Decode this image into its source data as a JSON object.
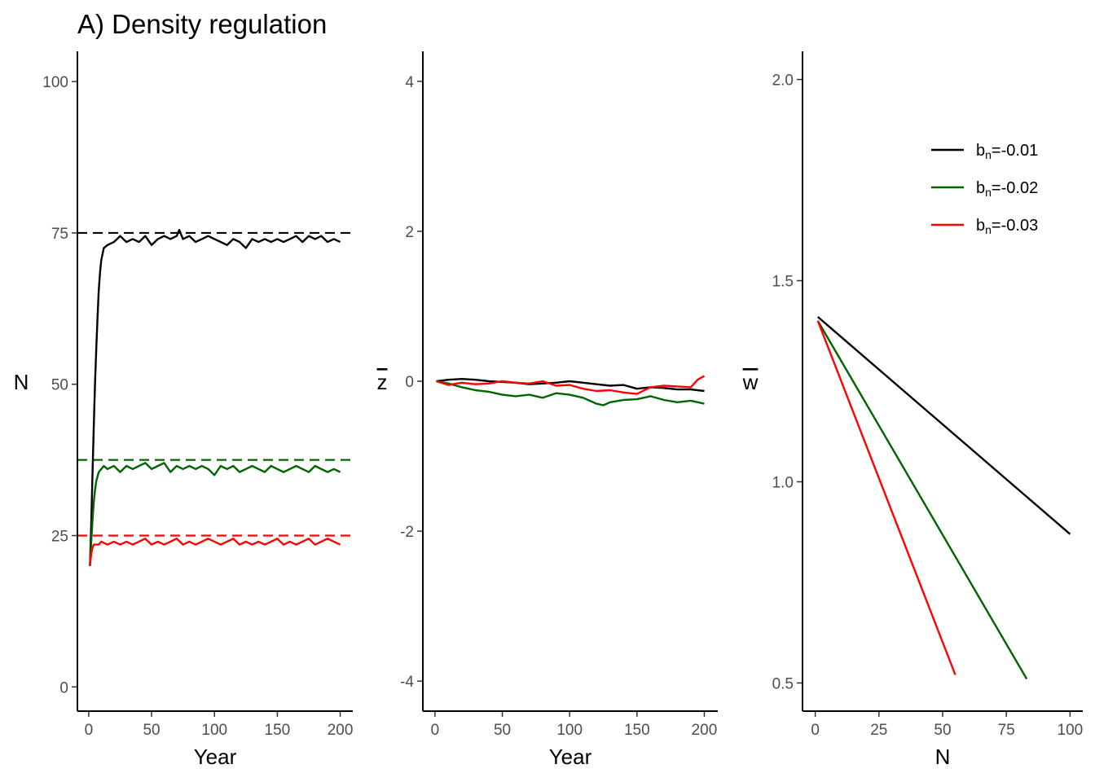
{
  "figure": {
    "title": "A) Density regulation"
  },
  "legend": [
    {
      "base": "b",
      "sub": "n",
      "rest": "=-0.01",
      "color": "#000000"
    },
    {
      "base": "b",
      "sub": "n",
      "rest": "=-0.02",
      "color": "#006400"
    },
    {
      "base": "b",
      "sub": "n",
      "rest": "=-0.03",
      "color": "#ff0000"
    }
  ],
  "chart_data": [
    {
      "type": "line",
      "xlabel": "Year",
      "ylabel": "N",
      "xlim": [
        -9,
        210
      ],
      "ylim": [
        -4,
        105
      ],
      "xticks": [
        0,
        50,
        100,
        150,
        200
      ],
      "yticks": [
        0,
        25,
        50,
        75,
        100
      ],
      "reference_lines": [
        {
          "y": 75,
          "color": "#000000",
          "style": "dashed"
        },
        {
          "y": 37.5,
          "color": "#006400",
          "style": "dashed"
        },
        {
          "y": 25,
          "color": "#ff0000",
          "style": "dashed"
        }
      ],
      "series": [
        {
          "color": "#000000",
          "x": [
            1,
            2,
            3,
            4,
            5,
            6,
            7,
            8,
            9,
            10,
            12,
            15,
            20,
            25,
            30,
            35,
            40,
            45,
            50,
            55,
            60,
            65,
            70,
            72,
            75,
            80,
            85,
            90,
            95,
            100,
            105,
            110,
            115,
            120,
            125,
            130,
            135,
            140,
            145,
            150,
            155,
            160,
            165,
            170,
            175,
            180,
            185,
            190,
            195,
            200
          ],
          "y": [
            20,
            27,
            35,
            43,
            50,
            56,
            61,
            65.5,
            68.5,
            70.5,
            72.5,
            73,
            73.5,
            74.5,
            73.5,
            74,
            73.5,
            74.5,
            73,
            74,
            74.5,
            74,
            74.5,
            75.5,
            74,
            74.5,
            73.5,
            74,
            74.5,
            74,
            73.5,
            73,
            74,
            73.5,
            72.5,
            74,
            73.5,
            74,
            73.5,
            74,
            73.5,
            74,
            74.5,
            73.5,
            74.5,
            74,
            74.5,
            73.5,
            74,
            73.5
          ]
        },
        {
          "color": "#006400",
          "x": [
            1,
            2,
            3,
            4,
            5,
            6,
            8,
            10,
            12,
            15,
            20,
            25,
            30,
            35,
            40,
            45,
            50,
            55,
            60,
            65,
            70,
            75,
            80,
            85,
            90,
            95,
            100,
            105,
            110,
            115,
            120,
            125,
            130,
            135,
            140,
            145,
            150,
            155,
            160,
            165,
            170,
            175,
            180,
            185,
            190,
            195,
            200
          ],
          "y": [
            20,
            24,
            27.5,
            30.5,
            32.5,
            34,
            35.5,
            36,
            36.5,
            36,
            36.5,
            35.5,
            36.5,
            36,
            36.5,
            37,
            36,
            36.5,
            37,
            35.5,
            36.5,
            36,
            36.5,
            36,
            36.5,
            36,
            35,
            36.5,
            36,
            36.5,
            35.5,
            36,
            36.5,
            36,
            35.5,
            36.5,
            36,
            35.5,
            36,
            36.5,
            36,
            35.5,
            36.5,
            36,
            35.5,
            36,
            35.5
          ]
        },
        {
          "color": "#ff0000",
          "x": [
            1,
            2,
            3,
            4,
            6,
            8,
            10,
            15,
            20,
            25,
            30,
            35,
            40,
            45,
            50,
            55,
            60,
            65,
            70,
            75,
            80,
            85,
            90,
            95,
            100,
            105,
            110,
            115,
            120,
            125,
            130,
            135,
            140,
            145,
            150,
            155,
            160,
            165,
            170,
            175,
            180,
            185,
            190,
            195,
            200
          ],
          "y": [
            20,
            22,
            23,
            23.5,
            23.5,
            23.5,
            24,
            23.5,
            24,
            23.5,
            24,
            23.5,
            24,
            24.5,
            23.5,
            24,
            23.5,
            24,
            24.5,
            23.5,
            24,
            23.5,
            24,
            24.5,
            24,
            23.5,
            24,
            24.5,
            23.5,
            24,
            23.5,
            24,
            23.5,
            24,
            24.5,
            23.5,
            24,
            23.5,
            24,
            24.5,
            23.5,
            24,
            24.5,
            24,
            23.5
          ]
        }
      ]
    },
    {
      "type": "line",
      "xlabel": "Year",
      "ylabel": "z",
      "ylabel_overline": true,
      "xlim": [
        -9,
        210
      ],
      "ylim": [
        -4.4,
        4.4
      ],
      "xticks": [
        0,
        50,
        100,
        150,
        200
      ],
      "yticks": [
        -4,
        -2,
        0,
        2,
        4
      ],
      "series": [
        {
          "color": "#000000",
          "x": [
            1,
            10,
            20,
            30,
            40,
            50,
            60,
            70,
            80,
            90,
            100,
            110,
            120,
            130,
            140,
            150,
            160,
            170,
            180,
            190,
            200
          ],
          "y": [
            0,
            0.02,
            0.03,
            0.02,
            0.0,
            -0.01,
            -0.02,
            -0.04,
            -0.03,
            -0.02,
            0.0,
            -0.02,
            -0.04,
            -0.06,
            -0.05,
            -0.1,
            -0.08,
            -0.09,
            -0.11,
            -0.11,
            -0.13
          ]
        },
        {
          "color": "#006400",
          "x": [
            1,
            10,
            20,
            30,
            40,
            50,
            60,
            70,
            80,
            90,
            100,
            110,
            120,
            125,
            130,
            140,
            150,
            160,
            170,
            180,
            190,
            200
          ],
          "y": [
            0,
            -0.03,
            -0.08,
            -0.12,
            -0.14,
            -0.18,
            -0.2,
            -0.18,
            -0.22,
            -0.16,
            -0.18,
            -0.22,
            -0.3,
            -0.32,
            -0.28,
            -0.25,
            -0.24,
            -0.2,
            -0.25,
            -0.28,
            -0.26,
            -0.3
          ]
        },
        {
          "color": "#ff0000",
          "x": [
            1,
            10,
            20,
            30,
            40,
            50,
            60,
            70,
            80,
            90,
            100,
            110,
            120,
            130,
            140,
            150,
            160,
            170,
            180,
            190,
            195,
            200
          ],
          "y": [
            0,
            -0.05,
            -0.02,
            -0.04,
            -0.03,
            0.0,
            -0.02,
            -0.03,
            0.0,
            -0.06,
            -0.05,
            -0.1,
            -0.13,
            -0.12,
            -0.15,
            -0.17,
            -0.08,
            -0.06,
            -0.07,
            -0.08,
            0.02,
            0.07
          ]
        }
      ]
    },
    {
      "type": "line",
      "xlabel": "N",
      "ylabel": "w",
      "ylabel_overline": true,
      "xlim": [
        -5,
        105
      ],
      "ylim": [
        0.43,
        2.07
      ],
      "xticks": [
        0,
        25,
        50,
        75,
        100
      ],
      "yticks": [
        0.5,
        1.0,
        1.5,
        2.0
      ],
      "ytick_labels": [
        "0.5",
        "1.0",
        "1.5",
        "2.0"
      ],
      "series": [
        {
          "color": "#000000",
          "x": [
            1,
            100
          ],
          "y": [
            1.41,
            0.87
          ]
        },
        {
          "color": "#006400",
          "x": [
            1,
            83
          ],
          "y": [
            1.4,
            0.51
          ]
        },
        {
          "color": "#ff0000",
          "x": [
            1,
            55
          ],
          "y": [
            1.4,
            0.52
          ]
        }
      ]
    }
  ]
}
